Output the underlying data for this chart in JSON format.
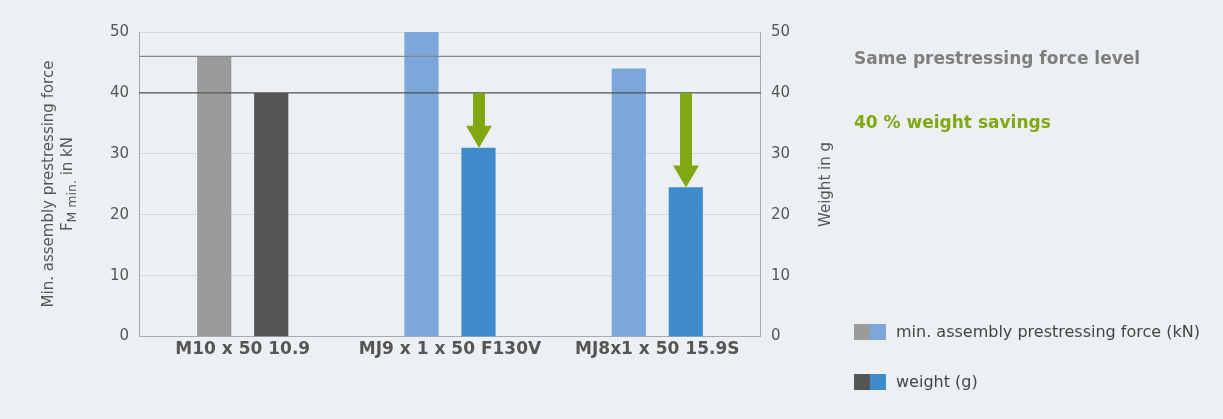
{
  "chart_data": {
    "type": "bar",
    "ylabel": "Min. assembly prestressing force F$_{M min.}$ in kN",
    "y2label": "Weight in g",
    "categories": [
      "M10 x 50 10.9",
      "MJ9 x 1 x 50 F130V",
      "MJ8x1 x 50 15.9S"
    ],
    "series": [
      {
        "name": "min. assembly prestressing force (kN)",
        "colors": [
          "#9b9b9b",
          "#7ba7da",
          "#7ba7da"
        ],
        "values": [
          46,
          50,
          44
        ]
      },
      {
        "name": "weight (g)",
        "axis": "y2",
        "colors": [
          "#555555",
          "#3f8bcb",
          "#3f8bcb"
        ],
        "values": [
          40,
          31,
          24.5
        ]
      }
    ],
    "ylim": [
      0,
      50
    ],
    "yticks": [
      0,
      10,
      20,
      30,
      40,
      50
    ],
    "y2lim": [
      0,
      50
    ],
    "y2ticks": [
      0,
      10,
      20,
      30,
      40,
      50
    ],
    "ref_lines": [
      {
        "axis": "y",
        "value": 46,
        "color": "#888888"
      },
      {
        "axis": "y",
        "value": 40,
        "color": "#555555"
      }
    ],
    "annotations": [
      "Same prestressing force level",
      "40 % weight savings"
    ],
    "grid": "y",
    "legend": "right"
  }
}
